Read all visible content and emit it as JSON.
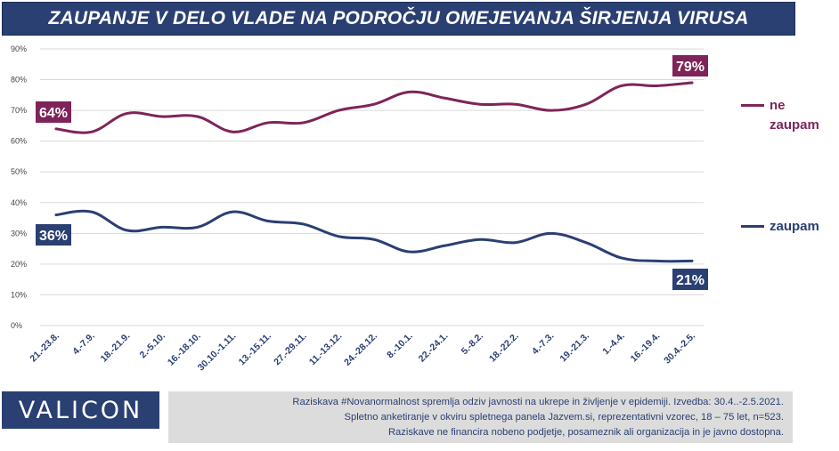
{
  "title": "ZAUPANJE V DELO VLADE NA PODROČJU OMEJEVANJA ŠIRJENJA VIRUSA",
  "colors": {
    "navy": "#2a3f72",
    "purple": "#7e2459",
    "grid": "#d9d9d9",
    "note_bg": "#dcdcdc"
  },
  "chart_data": {
    "type": "line",
    "title": "ZAUPANJE V DELO VLADE NA PODROČJU OMEJEVANJA ŠIRJENJA VIRUSA",
    "categories": [
      "21.-23.8.",
      "4.-7.9.",
      "18.-21.9.",
      "2.-5.10.",
      "16.-18.10.",
      "30.10.-1.11.",
      "13.-15.11.",
      "27.-29.11.",
      "11.-13.12.",
      "24.-28.12.",
      "8.-10.1.",
      "22.-24.1.",
      "5.-8.2.",
      "18.-22.2.",
      "4.-7.3.",
      "19.-21.3.",
      "1.-4.4.",
      "16.-19.4.",
      "30.4.-2.5."
    ],
    "series": [
      {
        "name": "ne zaupam",
        "color": "#7e2459",
        "values": [
          64,
          63,
          69,
          68,
          68,
          63,
          66,
          66,
          70,
          72,
          76,
          74,
          72,
          72,
          70,
          72,
          78,
          78,
          79
        ]
      },
      {
        "name": "zaupam",
        "color": "#2a3f72",
        "values": [
          36,
          37,
          31,
          32,
          32,
          37,
          34,
          33,
          29,
          28,
          24,
          26,
          28,
          27,
          30,
          27,
          22,
          21,
          21
        ]
      }
    ],
    "ylim": [
      0,
      90
    ],
    "yticks": [
      "0%",
      "10%",
      "20%",
      "30%",
      "40%",
      "50%",
      "60%",
      "70%",
      "80%",
      "90%"
    ],
    "grid": "horizontal",
    "legend_position": "right",
    "annotations": {
      "ne_zaupam_first": "64%",
      "ne_zaupam_last": "79%",
      "zaupam_first": "36%",
      "zaupam_last": "21%"
    }
  },
  "legend": {
    "ne_zaupam_line1": "ne",
    "ne_zaupam_line2": "zaupam",
    "zaupam": "zaupam"
  },
  "footer": {
    "logo": "VALICON",
    "note1": "Raziskava #Novanormalnost spremlja odziv javnosti na ukrepe in življenje v epidemiji. Izvedba: 30.4..-2.5.2021.",
    "note2": "Spletno anketiranje v okviru spletnega panela Jazvem.si, reprezentativni vzorec, 18 – 75 let, n=523.",
    "note3": "Raziskave ne financira nobeno podjetje, posameznik ali organizacija in je javno dostopna."
  }
}
